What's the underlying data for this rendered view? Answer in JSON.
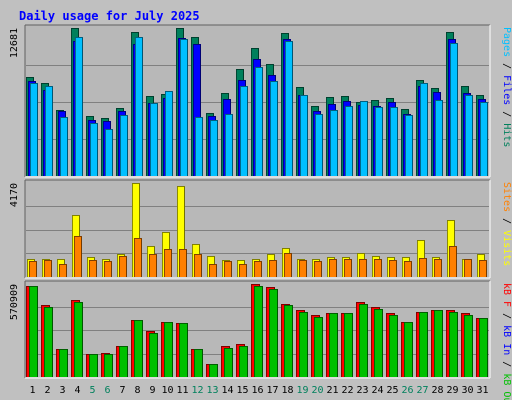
{
  "title": "Daily usage for July 2025",
  "colors": {
    "background": "#c0c0c0",
    "plot_bg": "#b8b8b8",
    "title": "#0000ff",
    "hits": "#00805c",
    "files": "#0000ff",
    "pages": "#00c0ff",
    "visits": "#ffff00",
    "sites": "#ff8000",
    "kb_in": "#0000ff",
    "kb_out": "#00c000",
    "kb_f": "#ff0000",
    "label_sep": "#000000"
  },
  "side_labels": {
    "top": [
      {
        "text": "Pages",
        "color": "#00c0ff"
      },
      {
        "text": " / ",
        "color": "#000000"
      },
      {
        "text": "Files",
        "color": "#0000ff"
      },
      {
        "text": " / ",
        "color": "#000000"
      },
      {
        "text": "Hits",
        "color": "#00805c"
      }
    ],
    "middle": [
      {
        "text": "Sites",
        "color": "#ff8000"
      },
      {
        "text": " / ",
        "color": "#000000"
      },
      {
        "text": "Visits",
        "color": "#ffff00"
      }
    ],
    "bottom": [
      {
        "text": "kB F",
        "color": "#ff0000"
      },
      {
        "text": " / ",
        "color": "#000000"
      },
      {
        "text": "kB In",
        "color": "#0000ff"
      },
      {
        "text": " / ",
        "color": "#000000"
      },
      {
        "text": "kB Out",
        "color": "#00c000"
      }
    ]
  },
  "chart_data": {
    "type": "bar",
    "categories": [
      "1",
      "2",
      "3",
      "4",
      "5",
      "6",
      "7",
      "8",
      "9",
      "10",
      "11",
      "12",
      "13",
      "14",
      "15",
      "16",
      "17",
      "18",
      "19",
      "20",
      "21",
      "22",
      "23",
      "24",
      "25",
      "26",
      "27",
      "28",
      "29",
      "30",
      "31"
    ],
    "weekend_days": [
      "5",
      "6",
      "12",
      "13",
      "19",
      "20",
      "26",
      "27"
    ],
    "panels": [
      {
        "name": "hits-files-pages",
        "ymax_label": "12681",
        "ylim": [
          0,
          12681
        ],
        "gridlines": [
          3170,
          6340,
          9511
        ],
        "series": [
          {
            "name": "Hits",
            "values": [
              8520,
              8000,
              5670,
              12680,
              5180,
              4940,
              5820,
              12330,
              6850,
              7040,
              12680,
              11920,
              5420,
              7080,
              9140,
              10980,
              9630,
              12280,
              7660,
              5990,
              6790,
              6850,
              6380,
              6490,
              6720,
              5770,
              8200,
              7530,
              12310,
              7710,
              6930
            ]
          },
          {
            "name": "Files",
            "values": [
              8180,
              7330,
              5550,
              11590,
              4800,
              4690,
              5540,
              11280,
              6260,
              6670,
              11860,
              11320,
              5180,
              6610,
              8200,
              9990,
              8620,
              11710,
              6960,
              5610,
              6140,
              6390,
              6080,
              6030,
              6350,
              5310,
              7690,
              7160,
              11710,
              7110,
              6640
            ]
          },
          {
            "name": "Pages",
            "values": [
              7990,
              7680,
              5050,
              11870,
              4550,
              4060,
              5260,
              11870,
              6240,
              7290,
              11740,
              5070,
              4820,
              5320,
              7670,
              9320,
              8140,
              11570,
              6960,
              5310,
              5680,
              6040,
              6460,
              5950,
              5950,
              5200,
              7940,
              6510,
              11380,
              6930,
              6370
            ]
          }
        ]
      },
      {
        "name": "visits-sites",
        "ymax_label": "4170",
        "ylim": [
          0,
          4170
        ],
        "gridlines": [
          1043,
          2085,
          3128
        ],
        "series": [
          {
            "name": "Visits",
            "values": [
              820,
              820,
              820,
              2740,
              880,
              820,
              1010,
              4150,
              1360,
              1980,
              4040,
              1480,
              950,
              760,
              740,
              820,
              1030,
              1300,
              820,
              820,
              890,
              880,
              1060,
              920,
              880,
              880,
              1650,
              870,
              2520,
              820,
              1000
            ]
          },
          {
            "name": "Sites",
            "values": [
              720,
              760,
              580,
              1820,
              770,
              730,
              930,
              1710,
              1040,
              1230,
              1220,
              1030,
              590,
              690,
              590,
              710,
              760,
              1070,
              750,
              730,
              810,
              810,
              780,
              800,
              740,
              720,
              860,
              790,
              1360,
              800,
              760
            ]
          }
        ]
      },
      {
        "name": "kb-traffic",
        "ymax_label": "570909",
        "ylim": [
          0,
          570909
        ],
        "gridlines": [
          142727,
          285455,
          428182
        ],
        "series": [
          {
            "name": "kB F",
            "values": [
              560000,
              440000,
              170000,
              470000,
              140000,
              150000,
              190000,
              350000,
              280000,
              340000,
              330000,
              170000,
              80000,
              190000,
              200000,
              570000,
              550000,
              450000,
              410000,
              380000,
              390000,
              390000,
              460000,
              430000,
              390000,
              340000,
              400000,
              410000,
              410000,
              390000,
              360000
            ]
          },
          {
            "name": "kB Out",
            "values": [
              560000,
              430000,
              170000,
              460000,
              140000,
              140000,
              190000,
              350000,
              270000,
              340000,
              330000,
              170000,
              80000,
              180000,
              190000,
              560000,
              540000,
              440000,
              400000,
              370000,
              390000,
              390000,
              450000,
              420000,
              380000,
              340000,
              400000,
              410000,
              400000,
              380000,
              360000
            ]
          }
        ]
      }
    ]
  }
}
